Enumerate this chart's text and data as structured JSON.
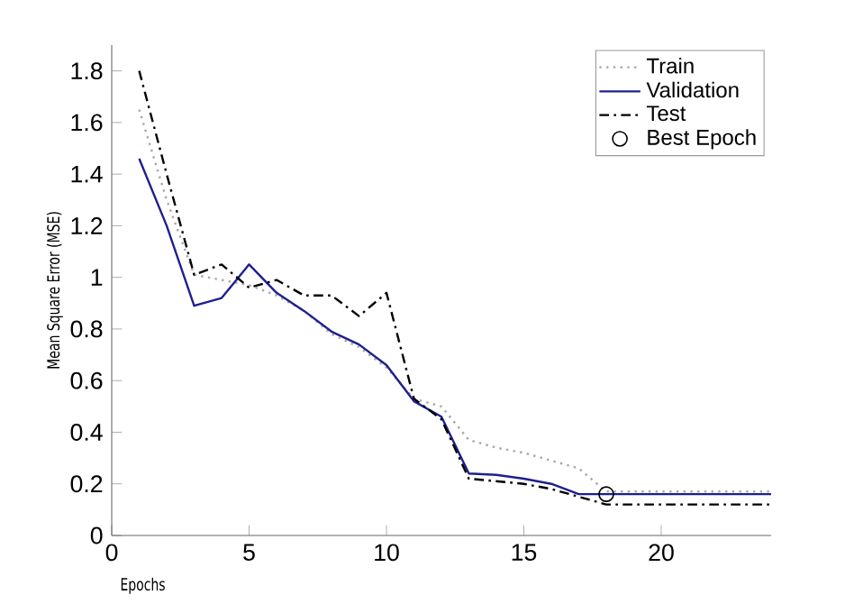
{
  "chart_data": {
    "type": "line",
    "xlabel": "Epochs",
    "ylabel": "Mean Square Error (MSE)",
    "xlim": [
      0,
      24
    ],
    "ylim": [
      0,
      1.9
    ],
    "xticks": [
      0,
      5,
      10,
      15,
      20
    ],
    "yticks": [
      0,
      0.2,
      0.4,
      0.6,
      0.8,
      1,
      1.2,
      1.4,
      1.6,
      1.8
    ],
    "legend": "top right",
    "grid": false,
    "marker": "none",
    "series": [
      {
        "name": "Train",
        "color": "#a8a8a8",
        "line_style": "dotted",
        "x": [
          1,
          2,
          3,
          4,
          5,
          6,
          7,
          8,
          9,
          10,
          11,
          12,
          13,
          14,
          15,
          16,
          17,
          18,
          24
        ],
        "values": [
          1.65,
          1.3,
          1.01,
          0.99,
          0.97,
          0.93,
          0.87,
          0.78,
          0.73,
          0.65,
          0.53,
          0.5,
          0.37,
          0.34,
          0.32,
          0.29,
          0.26,
          0.17,
          0.17
        ]
      },
      {
        "name": "Validation",
        "color": "#1f1f8f",
        "line_style": "solid",
        "x": [
          1,
          2,
          3,
          4,
          5,
          6,
          7,
          8,
          9,
          10,
          11,
          12,
          13,
          14,
          15,
          16,
          17,
          18,
          24
        ],
        "values": [
          1.46,
          1.2,
          0.89,
          0.92,
          1.05,
          0.94,
          0.87,
          0.79,
          0.74,
          0.66,
          0.52,
          0.46,
          0.24,
          0.235,
          0.22,
          0.2,
          0.16,
          0.16,
          0.16
        ]
      },
      {
        "name": "Test",
        "color": "#000000",
        "line_style": "dashed",
        "x": [
          1,
          2,
          3,
          4,
          5,
          6,
          7,
          8,
          9,
          10,
          11,
          12,
          13,
          14,
          15,
          16,
          17,
          18,
          24
        ],
        "values": [
          1.8,
          1.4,
          1.01,
          1.05,
          0.96,
          0.99,
          0.93,
          0.93,
          0.85,
          0.94,
          0.53,
          0.45,
          0.22,
          0.21,
          0.2,
          0.18,
          0.15,
          0.12,
          0.12
        ]
      },
      {
        "name": "Best Epoch",
        "type": "scatter",
        "marker": "circle",
        "color": "#000000",
        "x": [
          18
        ],
        "values": [
          0.16
        ]
      }
    ]
  }
}
